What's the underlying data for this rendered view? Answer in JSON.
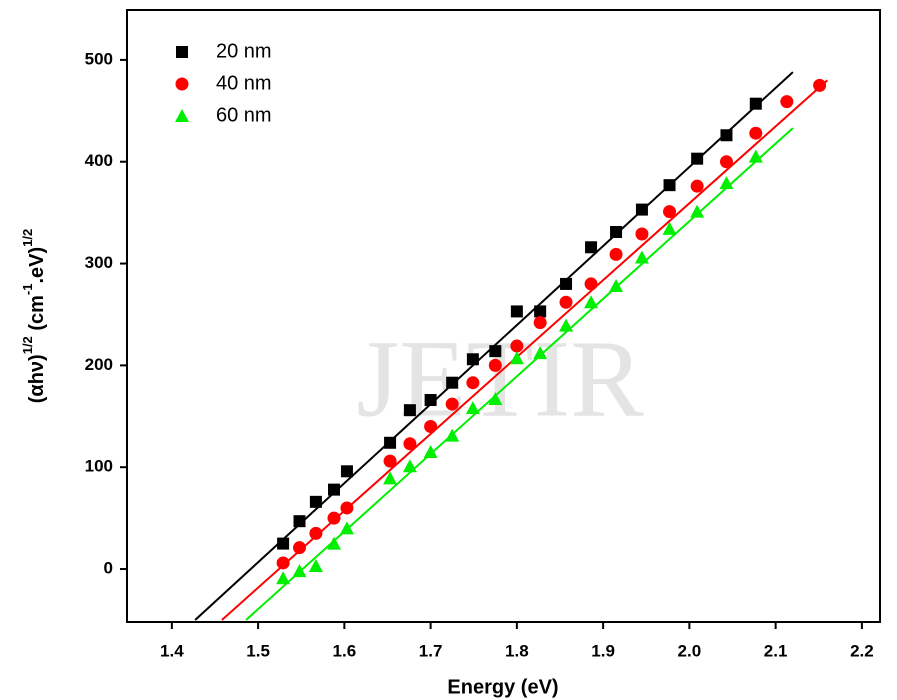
{
  "chart_data": {
    "type": "scatter",
    "watermark": "JETIR",
    "xlabel": "Energy (eV)",
    "ylabel_parts": [
      "(αhν)",
      "1/2",
      " (cm",
      "-1",
      ".eV)",
      "1/2"
    ],
    "xlim": [
      1.348,
      2.221
    ],
    "ylim": [
      -52,
      549
    ],
    "xticks": [
      1.4,
      1.5,
      1.6,
      1.7,
      1.8,
      1.9,
      {
        "value": 2,
        "label": "2.0"
      },
      2.1,
      2.2
    ],
    "yticks": [
      0,
      100,
      200,
      300,
      400,
      500
    ],
    "legend": "upper left",
    "series": [
      {
        "name": "20 nm",
        "color": "#000000",
        "marker": "square",
        "x": [
          1.529,
          1.548,
          1.567,
          1.588,
          1.603,
          1.653,
          1.676,
          1.7,
          1.725,
          1.749,
          1.775,
          1.8,
          1.827,
          1.857,
          1.886,
          1.915,
          1.945,
          1.977,
          2.009,
          2.043,
          2.077
        ],
        "values": [
          25,
          47,
          66,
          78,
          96,
          124,
          156,
          166,
          183,
          206,
          214,
          253,
          253,
          280,
          316,
          331,
          353,
          377,
          403,
          426,
          457
        ],
        "fit_x": [
          1.427,
          2.12
        ],
        "fit_y": [
          -50,
          488
        ]
      },
      {
        "name": "40 nm",
        "color": "#ff0000",
        "marker": "circle",
        "x": [
          1.529,
          1.548,
          1.567,
          1.588,
          1.603,
          1.653,
          1.676,
          1.7,
          1.725,
          1.749,
          1.775,
          1.8,
          1.827,
          1.857,
          1.886,
          1.915,
          1.945,
          1.977,
          2.009,
          2.043,
          2.077,
          2.113,
          2.151
        ],
        "values": [
          6,
          21,
          35,
          50,
          60,
          106,
          123,
          140,
          162,
          183,
          200,
          219,
          242,
          262,
          280,
          309,
          329,
          351,
          376,
          400,
          428,
          459,
          475
        ],
        "fit_x": [
          1.458,
          2.16
        ],
        "fit_y": [
          -50,
          480
        ]
      },
      {
        "name": "60 nm",
        "color": "#00ee00",
        "marker": "triangle",
        "x": [
          1.529,
          1.548,
          1.567,
          1.588,
          1.603,
          1.653,
          1.676,
          1.7,
          1.725,
          1.749,
          1.775,
          1.8,
          1.827,
          1.857,
          1.886,
          1.915,
          1.945,
          1.977,
          2.009,
          2.043,
          2.077
        ],
        "values": [
          -9,
          -2,
          3,
          25,
          40,
          89,
          101,
          115,
          131,
          158,
          167,
          207,
          212,
          239,
          262,
          278,
          306,
          334,
          351,
          379,
          405
        ],
        "fit_x": [
          1.486,
          2.12
        ],
        "fit_y": [
          -50,
          433
        ]
      }
    ]
  }
}
